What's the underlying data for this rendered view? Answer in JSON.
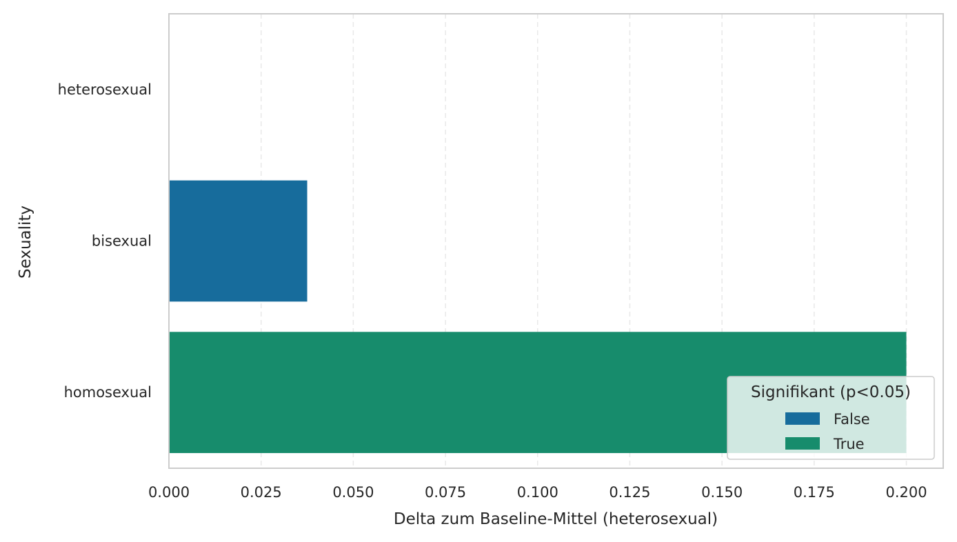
{
  "chart_data": {
    "type": "bar",
    "orientation": "horizontal",
    "categories": [
      "heterosexual",
      "bisexual",
      "homosexual"
    ],
    "values": [
      0.0,
      0.0375,
      0.2
    ],
    "significant": [
      false,
      false,
      true
    ],
    "xlabel": "Delta zum Baseline-Mittel (heterosexual)",
    "ylabel": "Sexuality",
    "xlim": [
      0.0,
      0.21
    ],
    "xticks": [
      0.0,
      0.025,
      0.05,
      0.075,
      0.1,
      0.125,
      0.15,
      0.175,
      0.2
    ],
    "xtick_labels": [
      "0.000",
      "0.025",
      "0.050",
      "0.075",
      "0.100",
      "0.125",
      "0.150",
      "0.175",
      "0.200"
    ],
    "grid": "x, dashed",
    "legend": {
      "title": "Signifikant (p<0.05)",
      "placement": "lower-right",
      "entries": [
        {
          "label": "False",
          "color": "#176c9c"
        },
        {
          "label": "True",
          "color": "#178c6c"
        }
      ]
    }
  },
  "colors": {
    "false": "#176c9c",
    "true": "#178c6c",
    "grid": "#e8e8e8",
    "spine": "#cccccc",
    "text": "#262626"
  }
}
